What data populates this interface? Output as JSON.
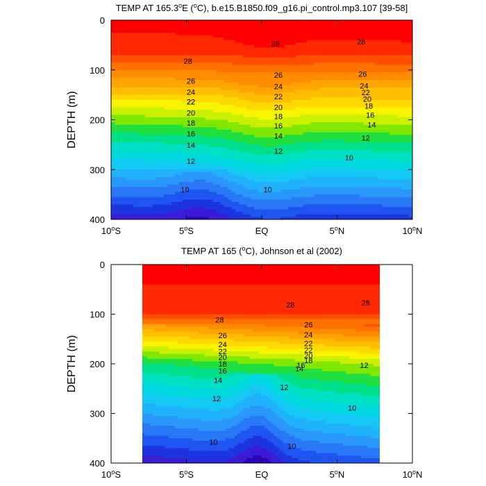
{
  "chart_data": [
    {
      "type": "contour",
      "title": "TEMP AT 165.3°E (°C), b.e15.B1850.f09_g16.pi_control.mp3.107 [39-58]",
      "title_parts": {
        "pre": "TEMP AT 165.3",
        "sup": "o",
        "post": "E (",
        "sup2": "o",
        "post2": "C), b.e15.B1850.f09_g16.pi_control.mp3.107 [39-58]"
      },
      "ylabel": "DEPTH (m)",
      "xlabel": "",
      "xlim": [
        -10,
        10
      ],
      "ylim": [
        400,
        0
      ],
      "y_reversed": true,
      "yticks": [
        "0",
        "100",
        "200",
        "300",
        "400"
      ],
      "xticks": [
        {
          "pre": "10",
          "sup": "o",
          "post": "S"
        },
        {
          "pre": "5",
          "sup": "o",
          "post": "S"
        },
        {
          "pre": "EQ",
          "sup": "",
          "post": ""
        },
        {
          "pre": "5",
          "sup": "o",
          "post": "N"
        },
        {
          "pre": "10",
          "sup": "o",
          "post": "N"
        }
      ],
      "data_extent_x": [
        -10,
        10
      ],
      "contour_interval": 1,
      "contour_labels": [
        {
          "text": "28",
          "x": -4.9,
          "y": 82
        },
        {
          "text": "28",
          "x": 0.9,
          "y": 47
        },
        {
          "text": "28",
          "x": 6.6,
          "y": 43
        },
        {
          "text": "26",
          "x": -4.7,
          "y": 122
        },
        {
          "text": "26",
          "x": 1.1,
          "y": 110
        },
        {
          "text": "26",
          "x": 6.7,
          "y": 108
        },
        {
          "text": "24",
          "x": -4.7,
          "y": 144
        },
        {
          "text": "24",
          "x": 1.1,
          "y": 133
        },
        {
          "text": "24",
          "x": 6.8,
          "y": 132
        },
        {
          "text": "22",
          "x": -4.7,
          "y": 164
        },
        {
          "text": "22",
          "x": 1.1,
          "y": 153
        },
        {
          "text": "22",
          "x": 6.9,
          "y": 145
        },
        {
          "text": "20",
          "x": 7.0,
          "y": 158
        },
        {
          "text": "22",
          "x": -4.7,
          "y": 164
        },
        {
          "text": "20",
          "x": -4.7,
          "y": 186
        },
        {
          "text": "20",
          "x": 1.1,
          "y": 175
        },
        {
          "text": "18",
          "x": 7.1,
          "y": 172
        },
        {
          "text": "18",
          "x": -4.7,
          "y": 206
        },
        {
          "text": "18",
          "x": 1.1,
          "y": 193
        },
        {
          "text": "16",
          "x": 7.2,
          "y": 190
        },
        {
          "text": "16",
          "x": -4.7,
          "y": 228
        },
        {
          "text": "16",
          "x": 1.1,
          "y": 212
        },
        {
          "text": "14",
          "x": 7.3,
          "y": 210
        },
        {
          "text": "14",
          "x": -4.7,
          "y": 251
        },
        {
          "text": "14",
          "x": 1.1,
          "y": 232
        },
        {
          "text": "12",
          "x": 6.9,
          "y": 236
        },
        {
          "text": "12",
          "x": -4.7,
          "y": 283
        },
        {
          "text": "12",
          "x": 1.1,
          "y": 263
        },
        {
          "text": "10",
          "x": 5.8,
          "y": 276
        },
        {
          "text": "10",
          "x": -5.1,
          "y": 340
        },
        {
          "text": "10",
          "x": 0.4,
          "y": 340
        }
      ]
    },
    {
      "type": "contour",
      "title": "TEMP AT 165 (°C), Johnson et al (2002)",
      "title_parts": {
        "pre": "TEMP AT 165 (",
        "sup": "o",
        "post": "C), Johnson et al (2002)",
        "sup2": "",
        "post2": ""
      },
      "ylabel": "DEPTH (m)",
      "xlabel": "",
      "xlim": [
        -10,
        10
      ],
      "ylim": [
        400,
        0
      ],
      "y_reversed": true,
      "yticks": [
        "0",
        "100",
        "200",
        "300",
        "400"
      ],
      "xticks": [
        {
          "pre": "10",
          "sup": "o",
          "post": "S"
        },
        {
          "pre": "5",
          "sup": "o",
          "post": "S"
        },
        {
          "pre": "EQ",
          "sup": "",
          "post": ""
        },
        {
          "pre": "5",
          "sup": "o",
          "post": "N"
        },
        {
          "pre": "10",
          "sup": "o",
          "post": "N"
        }
      ],
      "data_extent_x": [
        -8,
        8
      ],
      "contour_interval": 1,
      "contour_labels": [
        {
          "text": "28",
          "x": -2.8,
          "y": 111
        },
        {
          "text": "28",
          "x": 1.9,
          "y": 81
        },
        {
          "text": "28",
          "x": 6.9,
          "y": 77
        },
        {
          "text": "26",
          "x": -2.6,
          "y": 143
        },
        {
          "text": "26",
          "x": 3.1,
          "y": 121
        },
        {
          "text": "24",
          "x": -2.6,
          "y": 161
        },
        {
          "text": "24",
          "x": 3.1,
          "y": 141
        },
        {
          "text": "22",
          "x": -2.6,
          "y": 175
        },
        {
          "text": "22",
          "x": 3.1,
          "y": 159
        },
        {
          "text": "20",
          "x": -2.6,
          "y": 187
        },
        {
          "text": "22",
          "x": 3.1,
          "y": 172
        },
        {
          "text": "18",
          "x": -2.6,
          "y": 200
        },
        {
          "text": "20",
          "x": 3.1,
          "y": 183
        },
        {
          "text": "16",
          "x": -2.6,
          "y": 214
        },
        {
          "text": "18",
          "x": 3.1,
          "y": 193
        },
        {
          "text": "14",
          "x": -2.9,
          "y": 233
        },
        {
          "text": "16",
          "x": 2.6,
          "y": 203
        },
        {
          "text": "14",
          "x": 2.5,
          "y": 210
        },
        {
          "text": "12",
          "x": 6.8,
          "y": 203
        },
        {
          "text": "12",
          "x": -3.0,
          "y": 270
        },
        {
          "text": "12",
          "x": 1.5,
          "y": 247
        },
        {
          "text": "10",
          "x": 6.0,
          "y": 289
        },
        {
          "text": "10",
          "x": -3.2,
          "y": 357
        },
        {
          "text": "10",
          "x": 2.0,
          "y": 366
        }
      ]
    }
  ]
}
